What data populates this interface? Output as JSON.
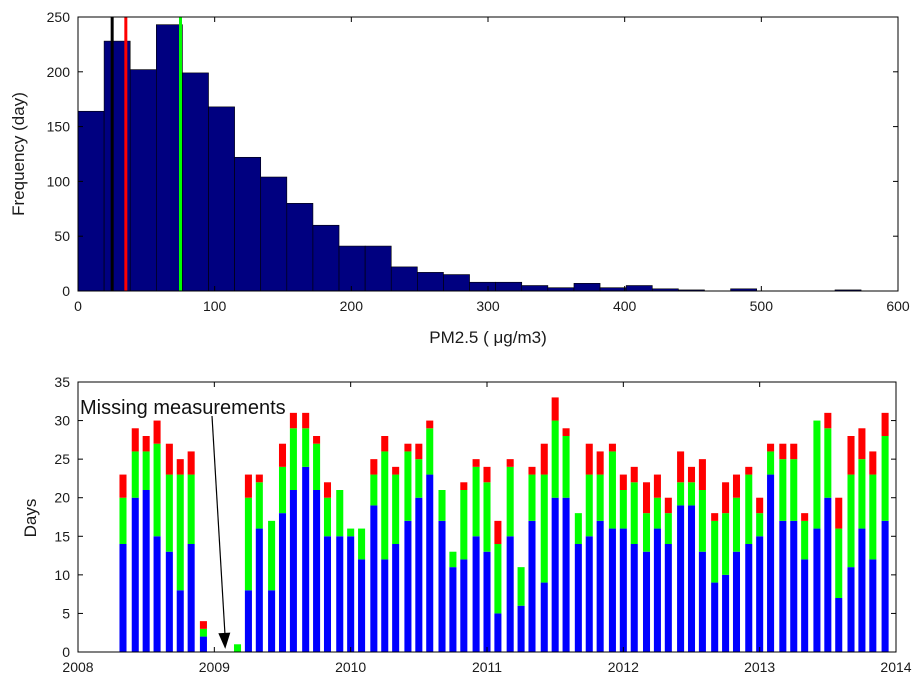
{
  "chart_data": [
    {
      "type": "bar",
      "subtype": "histogram",
      "xlabel": "PM2.5 (  μg/m3)",
      "ylabel": "Frequency (day)",
      "xlim": [
        0,
        600
      ],
      "ylim": [
        0,
        250
      ],
      "xticks": [
        "0",
        "100",
        "200",
        "300",
        "400",
        "500",
        "600"
      ],
      "yticks": [
        "0",
        "50",
        "100",
        "150",
        "200",
        "250"
      ],
      "bar_color": "#000080",
      "bin_width": 19.1,
      "bin_starts": [
        0,
        19.1,
        38.2,
        57.3,
        76.4,
        95.5,
        114.6,
        133.7,
        152.8,
        171.9,
        191.0,
        210.1,
        229.2,
        248.3,
        267.4,
        286.5,
        305.6,
        324.7,
        343.8,
        362.9,
        382.0,
        401.1,
        420.2,
        439.3,
        458.4,
        477.5,
        496.6,
        515.7,
        534.8,
        553.9
      ],
      "values": [
        164,
        228,
        202,
        243,
        199,
        168,
        122,
        104,
        80,
        60,
        41,
        41,
        22,
        17,
        15,
        8,
        8,
        5,
        3,
        7,
        3,
        5,
        2,
        1,
        0,
        2,
        0,
        0,
        0,
        1
      ],
      "vertical_lines": [
        {
          "x": 25,
          "color": "#000000"
        },
        {
          "x": 35,
          "color": "#ff0000"
        },
        {
          "x": 75,
          "color": "#00ff00"
        }
      ]
    },
    {
      "type": "bar",
      "subtype": "stacked",
      "ylabel": "Days",
      "xlim": [
        2008,
        2014
      ],
      "ylim": [
        0,
        35
      ],
      "xticks": [
        "2008",
        "2009",
        "2010",
        "2011",
        "2012",
        "2013",
        "2014"
      ],
      "yticks": [
        "0",
        "5",
        "10",
        "15",
        "20",
        "25",
        "30",
        "35"
      ],
      "x": [
        2008.33,
        2008.42,
        2008.5,
        2008.58,
        2008.67,
        2008.75,
        2008.83,
        2008.92,
        2009.17,
        2009.25,
        2009.33,
        2009.42,
        2009.5,
        2009.58,
        2009.67,
        2009.75,
        2009.83,
        2009.92,
        2010.0,
        2010.08,
        2010.17,
        2010.25,
        2010.33,
        2010.42,
        2010.5,
        2010.58,
        2010.67,
        2010.75,
        2010.83,
        2010.92,
        2011.0,
        2011.08,
        2011.17,
        2011.25,
        2011.33,
        2011.42,
        2011.5,
        2011.58,
        2011.67,
        2011.75,
        2011.83,
        2011.92,
        2012.0,
        2012.08,
        2012.17,
        2012.25,
        2012.33,
        2012.42,
        2012.5,
        2012.58,
        2012.67,
        2012.75,
        2012.83,
        2012.92,
        2013.0,
        2013.08,
        2013.17,
        2013.25,
        2013.33,
        2013.42,
        2013.5,
        2013.58,
        2013.67,
        2013.75,
        2013.83,
        2013.92
      ],
      "series": [
        {
          "color": "#0000ff",
          "values": [
            14,
            20,
            21,
            15,
            13,
            8,
            14,
            2,
            0,
            8,
            16,
            8,
            18,
            21,
            24,
            21,
            15,
            15,
            15,
            12,
            19,
            12,
            14,
            17,
            20,
            23,
            17,
            11,
            12,
            15,
            13,
            5,
            15,
            6,
            17,
            9,
            20,
            20,
            14,
            15,
            17,
            16,
            16,
            14,
            13,
            16,
            14,
            19,
            19,
            13,
            9,
            10,
            13,
            14,
            15,
            23,
            17,
            17,
            12,
            16,
            20,
            7,
            11,
            16,
            12,
            17
          ]
        },
        {
          "color": "#00ff00",
          "values": [
            6,
            6,
            5,
            12,
            10,
            15,
            9,
            1,
            1,
            12,
            6,
            9,
            6,
            8,
            5,
            6,
            5,
            6,
            1,
            4,
            4,
            14,
            9,
            9,
            5,
            6,
            4,
            2,
            9,
            9,
            9,
            9,
            9,
            5,
            6,
            14,
            10,
            8,
            4,
            8,
            6,
            10,
            5,
            8,
            5,
            4,
            4,
            3,
            3,
            8,
            8,
            8,
            7,
            9,
            3,
            3,
            8,
            8,
            5,
            14,
            9,
            9,
            12,
            9,
            11,
            11
          ]
        },
        {
          "color": "#ff0000",
          "values": [
            3,
            3,
            2,
            3,
            4,
            2,
            3,
            1,
            0,
            3,
            1,
            0,
            3,
            2,
            2,
            1,
            2,
            0,
            0,
            0,
            2,
            2,
            1,
            1,
            2,
            1,
            0,
            0,
            1,
            1,
            2,
            3,
            1,
            0,
            1,
            4,
            3,
            1,
            0,
            4,
            3,
            1,
            2,
            2,
            4,
            3,
            2,
            4,
            2,
            4,
            1,
            4,
            3,
            1,
            2,
            1,
            2,
            2,
            1,
            0,
            2,
            4,
            5,
            4,
            3,
            3
          ]
        }
      ],
      "annotation": {
        "text": "Missing measurements",
        "arrow_to_x": 2009.08
      }
    }
  ]
}
